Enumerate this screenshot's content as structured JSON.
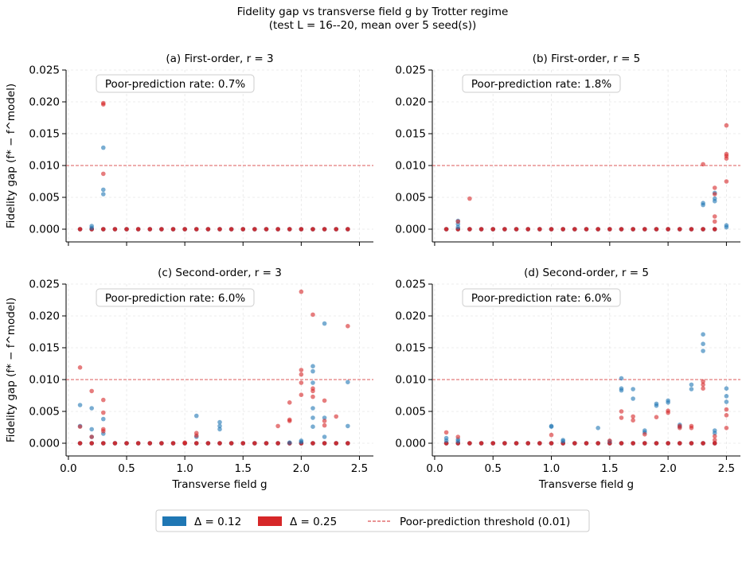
{
  "figure": {
    "title_line1": "Fidelity gap vs transverse field g by Trotter regime",
    "title_line2": "(test L = 16--20, mean over 5 seed(s))"
  },
  "colors": {
    "delta_012": "#1f77b4",
    "delta_025": "#d62728",
    "threshold": "#d62728"
  },
  "legend": {
    "items": [
      {
        "label": "Δ = 0.12",
        "color": "#1f77b4",
        "kind": "patch"
      },
      {
        "label": "Δ = 0.25",
        "color": "#d62728",
        "kind": "patch"
      },
      {
        "label": "Poor-prediction threshold (0.01)",
        "color": "#d62728",
        "kind": "dashed-line"
      }
    ]
  },
  "chart_data": [
    {
      "type": "scatter",
      "title": "(a) First-order, r = 3",
      "annotation": "Poor-prediction rate: 0.7%",
      "ylabel": "Fidelity gap (f* − f^model)",
      "xlabel": "",
      "xlim": [
        -0.02,
        2.62
      ],
      "ylim": [
        -0.002,
        0.025
      ],
      "xticks": [
        0.0,
        0.5,
        1.0,
        1.5,
        2.0,
        2.5
      ],
      "yticks": [
        0.0,
        0.005,
        0.01,
        0.015,
        0.02,
        0.025
      ],
      "ytick_labels": [
        "0.000",
        "0.005",
        "0.010",
        "0.015",
        "0.020",
        "0.025"
      ],
      "xtick_labels": [],
      "threshold": 0.01,
      "grid": true,
      "series": [
        {
          "name": "Δ = 0.12",
          "color_key": "delta_012",
          "points": [
            [
              0.2,
              0.0005
            ],
            [
              0.3,
              0.0128
            ],
            [
              0.3,
              0.0062
            ],
            [
              0.3,
              0.0055
            ],
            [
              0.2,
              0.0002
            ]
          ]
        },
        {
          "name": "Δ = 0.25",
          "color_key": "delta_025",
          "points": [
            [
              0.3,
              0.0198
            ],
            [
              0.3,
              0.0196
            ],
            [
              0.3,
              0.0087
            ]
          ]
        }
      ]
    },
    {
      "type": "scatter",
      "title": "(b) First-order, r = 5",
      "annotation": "Poor-prediction rate: 1.8%",
      "ylabel": "",
      "xlabel": "",
      "xlim": [
        -0.02,
        2.62
      ],
      "ylim": [
        -0.002,
        0.025
      ],
      "xticks": [
        0.0,
        0.5,
        1.0,
        1.5,
        2.0,
        2.5
      ],
      "yticks": [
        0.0,
        0.005,
        0.01,
        0.015,
        0.02,
        0.025
      ],
      "ytick_labels": [
        "0.000",
        "0.005",
        "0.010",
        "0.015",
        "0.020",
        "0.025"
      ],
      "xtick_labels": [],
      "threshold": 0.01,
      "grid": true,
      "series": [
        {
          "name": "Δ = 0.12",
          "color_key": "delta_012",
          "points": [
            [
              0.2,
              0.0013
            ],
            [
              0.2,
              0.0008
            ],
            [
              0.2,
              0.0003
            ],
            [
              2.3,
              0.0041
            ],
            [
              2.3,
              0.0038
            ],
            [
              2.4,
              0.0057
            ],
            [
              2.4,
              0.0048
            ],
            [
              2.4,
              0.0044
            ],
            [
              2.5,
              0.0006
            ],
            [
              2.5,
              0.0003
            ]
          ]
        },
        {
          "name": "Δ = 0.25",
          "color_key": "delta_025",
          "points": [
            [
              0.2,
              0.0012
            ],
            [
              0.3,
              0.0048
            ],
            [
              2.3,
              0.0102
            ],
            [
              2.4,
              0.0065
            ],
            [
              2.4,
              0.0055
            ],
            [
              2.4,
              0.002
            ],
            [
              2.4,
              0.0012
            ],
            [
              2.5,
              0.0163
            ],
            [
              2.5,
              0.0118
            ],
            [
              2.5,
              0.0115
            ],
            [
              2.5,
              0.0111
            ],
            [
              2.5,
              0.0075
            ]
          ]
        }
      ]
    },
    {
      "type": "scatter",
      "title": "(c) Second-order, r = 3",
      "annotation": "Poor-prediction rate: 6.0%",
      "ylabel": "Fidelity gap (f* − f^model)",
      "xlabel": "Transverse field g",
      "xlim": [
        -0.02,
        2.62
      ],
      "ylim": [
        -0.002,
        0.025
      ],
      "xticks": [
        0.0,
        0.5,
        1.0,
        1.5,
        2.0,
        2.5
      ],
      "yticks": [
        0.0,
        0.005,
        0.01,
        0.015,
        0.02,
        0.025
      ],
      "ytick_labels": [
        "0.000",
        "0.005",
        "0.010",
        "0.015",
        "0.020",
        "0.025"
      ],
      "xtick_labels": [
        "0.0",
        "0.5",
        "1.0",
        "1.5",
        "2.0",
        "2.5"
      ],
      "threshold": 0.01,
      "grid": true,
      "series": [
        {
          "name": "Δ = 0.12",
          "color_key": "delta_012",
          "points": [
            [
              0.1,
              0.006
            ],
            [
              0.1,
              0.0027
            ],
            [
              0.2,
              0.0055
            ],
            [
              0.2,
              0.0022
            ],
            [
              0.2,
              0.001
            ],
            [
              0.3,
              0.0038
            ],
            [
              0.3,
              0.0015
            ],
            [
              1.1,
              0.0043
            ],
            [
              1.1,
              0.001
            ],
            [
              1.3,
              0.0033
            ],
            [
              1.3,
              0.0027
            ],
            [
              1.3,
              0.0022
            ],
            [
              1.9,
              0.0001
            ],
            [
              2.0,
              0.0002
            ],
            [
              2.0,
              0.0004
            ],
            [
              2.1,
              0.0121
            ],
            [
              2.1,
              0.0113
            ],
            [
              2.1,
              0.0095
            ],
            [
              2.1,
              0.0055
            ],
            [
              2.1,
              0.004
            ],
            [
              2.1,
              0.0026
            ],
            [
              2.2,
              0.0188
            ],
            [
              2.2,
              0.004
            ],
            [
              2.2,
              0.001
            ],
            [
              2.4,
              0.0096
            ],
            [
              2.4,
              0.0027
            ]
          ]
        },
        {
          "name": "Δ = 0.25",
          "color_key": "delta_025",
          "points": [
            [
              0.1,
              0.0119
            ],
            [
              0.1,
              0.0026
            ],
            [
              0.2,
              0.0082
            ],
            [
              0.2,
              0.001
            ],
            [
              0.3,
              0.0068
            ],
            [
              0.3,
              0.0048
            ],
            [
              0.3,
              0.0022
            ],
            [
              0.3,
              0.0019
            ],
            [
              1.0,
              0.0001
            ],
            [
              1.1,
              0.0016
            ],
            [
              1.1,
              0.0012
            ],
            [
              1.8,
              0.0027
            ],
            [
              1.9,
              0.0037
            ],
            [
              1.9,
              0.0035
            ],
            [
              1.9,
              0.0064
            ],
            [
              2.0,
              0.0238
            ],
            [
              2.0,
              0.0115
            ],
            [
              2.0,
              0.0108
            ],
            [
              2.0,
              0.0095
            ],
            [
              2.0,
              0.0076
            ],
            [
              2.1,
              0.0202
            ],
            [
              2.1,
              0.0086
            ],
            [
              2.1,
              0.0082
            ],
            [
              2.1,
              0.0073
            ],
            [
              2.2,
              0.0067
            ],
            [
              2.2,
              0.0035
            ],
            [
              2.2,
              0.0028
            ],
            [
              2.3,
              0.0042
            ],
            [
              2.4,
              0.0184
            ]
          ]
        }
      ]
    },
    {
      "type": "scatter",
      "title": "(d) Second-order, r = 5",
      "annotation": "Poor-prediction rate: 6.0%",
      "ylabel": "",
      "xlabel": "Transverse field g",
      "xlim": [
        -0.02,
        2.62
      ],
      "ylim": [
        -0.002,
        0.025
      ],
      "xticks": [
        0.0,
        0.5,
        1.0,
        1.5,
        2.0,
        2.5
      ],
      "yticks": [
        0.0,
        0.005,
        0.01,
        0.015,
        0.02,
        0.025
      ],
      "ytick_labels": [
        "0.000",
        "0.005",
        "0.010",
        "0.015",
        "0.020",
        "0.025"
      ],
      "xtick_labels": [
        "0.0",
        "0.5",
        "1.0",
        "1.5",
        "2.0",
        "2.5"
      ],
      "threshold": 0.01,
      "grid": true,
      "series": [
        {
          "name": "Δ = 0.12",
          "color_key": "delta_012",
          "points": [
            [
              0.1,
              0.0008
            ],
            [
              0.1,
              0.0004
            ],
            [
              0.2,
              0.0006
            ],
            [
              0.2,
              0.0003
            ],
            [
              1.0,
              0.0027
            ],
            [
              1.0,
              0.0026
            ],
            [
              1.1,
              0.0005
            ],
            [
              1.1,
              0.0003
            ],
            [
              1.4,
              0.0024
            ],
            [
              1.5,
              0.0003
            ],
            [
              1.6,
              0.0102
            ],
            [
              1.6,
              0.0086
            ],
            [
              1.6,
              0.0083
            ],
            [
              1.7,
              0.0085
            ],
            [
              1.7,
              0.007
            ],
            [
              1.8,
              0.002
            ],
            [
              1.8,
              0.0017
            ],
            [
              1.9,
              0.0062
            ],
            [
              1.9,
              0.0059
            ],
            [
              2.0,
              0.0067
            ],
            [
              2.0,
              0.0064
            ],
            [
              2.1,
              0.0029
            ],
            [
              2.1,
              0.0026
            ],
            [
              2.2,
              0.0092
            ],
            [
              2.2,
              0.0085
            ],
            [
              2.3,
              0.0171
            ],
            [
              2.3,
              0.0156
            ],
            [
              2.3,
              0.0145
            ],
            [
              2.4,
              0.002
            ],
            [
              2.4,
              0.0016
            ],
            [
              2.5,
              0.0086
            ],
            [
              2.5,
              0.0074
            ],
            [
              2.5,
              0.0065
            ]
          ]
        },
        {
          "name": "Δ = 0.25",
          "color_key": "delta_025",
          "points": [
            [
              0.1,
              0.0017
            ],
            [
              0.2,
              0.001
            ],
            [
              1.0,
              0.0013
            ],
            [
              1.5,
              0.0004
            ],
            [
              1.6,
              0.005
            ],
            [
              1.6,
              0.004
            ],
            [
              1.7,
              0.0042
            ],
            [
              1.7,
              0.0036
            ],
            [
              1.8,
              0.0014
            ],
            [
              1.9,
              0.0041
            ],
            [
              2.0,
              0.0051
            ],
            [
              2.0,
              0.0048
            ],
            [
              2.1,
              0.0027
            ],
            [
              2.1,
              0.0024
            ],
            [
              2.2,
              0.0027
            ],
            [
              2.2,
              0.0024
            ],
            [
              2.3,
              0.0097
            ],
            [
              2.3,
              0.0092
            ],
            [
              2.3,
              0.0086
            ],
            [
              2.4,
              0.0011
            ],
            [
              2.4,
              0.0005
            ],
            [
              2.5,
              0.0053
            ],
            [
              2.5,
              0.0044
            ],
            [
              2.5,
              0.0024
            ]
          ]
        }
      ]
    }
  ]
}
